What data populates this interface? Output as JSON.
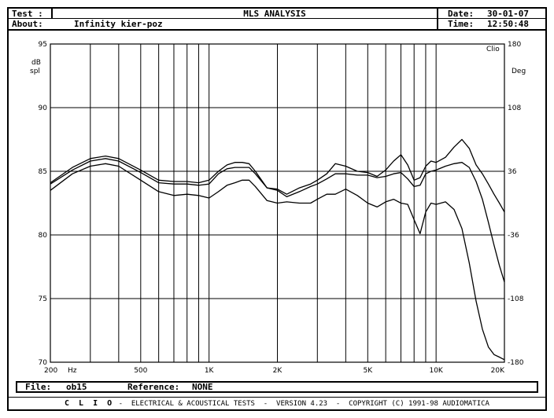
{
  "header": {
    "test_label": "Test :",
    "about_label": "About:",
    "about_value": "Infinity kier-poz",
    "title": "MLS ANALYSIS",
    "date_label": "Date:",
    "date_value": "30-01-07",
    "time_label": "Time:",
    "time_value": "12:50:48"
  },
  "file": {
    "file_label": "File:",
    "file_value": "ob15",
    "reference_label": "Reference:",
    "reference_value": "NONE"
  },
  "footer": {
    "brand": "C L I O",
    "text": " -  ELECTRICAL & ACOUSTICAL TESTS  -  VERSION 4.23  -  COPYRIGHT (C) 1991-98 AUDIOMATICA"
  },
  "chart_data": {
    "type": "line",
    "xscale": "log",
    "xlim": [
      200,
      20000
    ],
    "ylim": [
      70,
      95
    ],
    "y2lim": [
      -180,
      180
    ],
    "ylabel": "dB spl",
    "y2label": "Deg",
    "corner_label": "Clio",
    "grid": true,
    "x_ticks": [
      {
        "value": 200,
        "label": "200"
      },
      {
        "value": 500,
        "label": "500"
      },
      {
        "value": 1000,
        "label": "1K"
      },
      {
        "value": 2000,
        "label": "2K"
      },
      {
        "value": 5000,
        "label": "5K"
      },
      {
        "value": 10000,
        "label": "10K"
      },
      {
        "value": 20000,
        "label": "20K"
      }
    ],
    "x_unit": "Hz",
    "y_ticks": [
      95,
      90,
      85,
      80,
      75,
      70
    ],
    "y2_ticks": [
      180,
      108,
      36,
      -36,
      -108,
      -180
    ],
    "x_gridlines": [
      200,
      300,
      400,
      500,
      600,
      700,
      800,
      900,
      1000,
      2000,
      3000,
      4000,
      5000,
      6000,
      7000,
      8000,
      9000,
      10000,
      20000
    ],
    "series": [
      {
        "x": [
          200,
          250,
          300,
          350,
          400,
          500,
          600,
          700,
          800,
          900,
          1000,
          1100,
          1200,
          1300,
          1400,
          1500,
          1600,
          1800,
          2000,
          2200,
          2500,
          2800,
          3000,
          3300,
          3600,
          4000,
          4500,
          5000,
          5500,
          6000,
          6500,
          7000,
          7500,
          8000,
          8500,
          9000,
          9500,
          10000,
          11000,
          12000,
          13000,
          14000,
          15000,
          16000,
          17000,
          18000,
          19000,
          20000
        ],
        "y": [
          84.1,
          85.3,
          86.0,
          86.2,
          86.0,
          85.1,
          84.3,
          84.2,
          84.2,
          84.1,
          84.3,
          85.0,
          85.5,
          85.7,
          85.7,
          85.6,
          85.0,
          83.7,
          83.6,
          83.2,
          83.7,
          84.0,
          84.3,
          84.8,
          85.6,
          85.4,
          85.0,
          84.9,
          84.6,
          85.1,
          85.8,
          86.3,
          85.5,
          84.3,
          84.5,
          85.4,
          85.8,
          85.7,
          86.1,
          86.9,
          87.5,
          86.8,
          85.5,
          84.8,
          84.0,
          83.2,
          82.5,
          81.8
        ]
      },
      {
        "x": [
          200,
          250,
          300,
          350,
          400,
          500,
          600,
          700,
          800,
          900,
          1000,
          1100,
          1200,
          1300,
          1400,
          1500,
          1600,
          1800,
          2000,
          2200,
          2500,
          2800,
          3000,
          3300,
          3600,
          4000,
          4500,
          5000,
          5500,
          6000,
          6500,
          7000,
          7500,
          8000,
          8500,
          9000,
          9500,
          10000,
          11000,
          12000,
          13000,
          14000,
          15000,
          16000,
          17000,
          18000,
          19000,
          20000
        ],
        "y": [
          84.0,
          85.1,
          85.8,
          86.0,
          85.8,
          84.9,
          84.1,
          84.0,
          84.0,
          83.9,
          84.0,
          84.8,
          85.2,
          85.3,
          85.3,
          85.3,
          84.8,
          83.7,
          83.5,
          83.0,
          83.4,
          83.8,
          84.0,
          84.4,
          84.8,
          84.8,
          84.7,
          84.7,
          84.5,
          84.6,
          84.8,
          84.9,
          84.4,
          83.8,
          83.9,
          84.8,
          85.0,
          85.1,
          85.4,
          85.6,
          85.7,
          85.3,
          84.2,
          82.8,
          81.0,
          79.2,
          77.6,
          76.3
        ]
      },
      {
        "x": [
          200,
          250,
          300,
          350,
          400,
          500,
          600,
          700,
          800,
          900,
          1000,
          1100,
          1200,
          1300,
          1400,
          1500,
          1600,
          1800,
          2000,
          2200,
          2500,
          2800,
          3000,
          3300,
          3600,
          4000,
          4500,
          5000,
          5500,
          6000,
          6500,
          7000,
          7500,
          8000,
          8500,
          9000,
          9500,
          10000,
          11000,
          12000,
          13000,
          14000,
          15000,
          16000,
          17000,
          18000,
          19000,
          20000
        ],
        "y": [
          83.5,
          84.8,
          85.4,
          85.6,
          85.4,
          84.3,
          83.4,
          83.1,
          83.2,
          83.1,
          82.9,
          83.4,
          83.9,
          84.1,
          84.3,
          84.3,
          83.8,
          82.7,
          82.5,
          82.6,
          82.5,
          82.5,
          82.8,
          83.2,
          83.2,
          83.6,
          83.1,
          82.5,
          82.2,
          82.6,
          82.8,
          82.5,
          82.4,
          81.2,
          80.1,
          81.8,
          82.5,
          82.4,
          82.6,
          82.0,
          80.5,
          77.8,
          74.8,
          72.6,
          71.2,
          70.6,
          70.4,
          70.2
        ]
      }
    ]
  }
}
